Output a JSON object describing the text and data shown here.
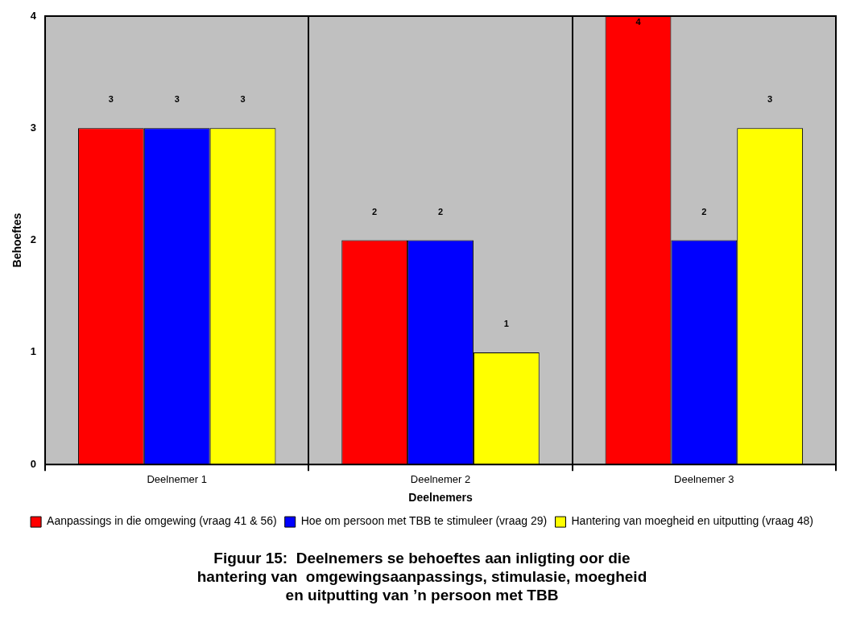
{
  "chart_data": {
    "type": "bar",
    "title": "Figuur 15:  Deelnemers se behoeftes aan inligting oor die hantering van  omgewingsaanpassings, stimulasie, moegheid en uitputting van ’n persoon met TBB",
    "xlabel": "Deelnemers",
    "ylabel": "Behoeftes",
    "categories": [
      "Deelnemer 1",
      "Deelnemer 2",
      "Deelnemer 3"
    ],
    "series": [
      {
        "name": "Aanpassings in die omgewing (vraag 41 & 56)",
        "color": "#ff0000",
        "values": [
          3,
          2,
          4
        ]
      },
      {
        "name": "Hoe om persoon met TBB te stimuleer (vraag 29)",
        "color": "#0000ff",
        "values": [
          3,
          2,
          2
        ]
      },
      {
        "name": "Hantering van moegheid en uitputting (vraag 48)",
        "color": "#ffff00",
        "values": [
          3,
          1,
          3
        ]
      }
    ],
    "ylim": [
      0,
      4
    ],
    "yticks": [
      0,
      1,
      2,
      3,
      4
    ],
    "grid": "x",
    "legend": "bottom",
    "data_labels": true
  }
}
